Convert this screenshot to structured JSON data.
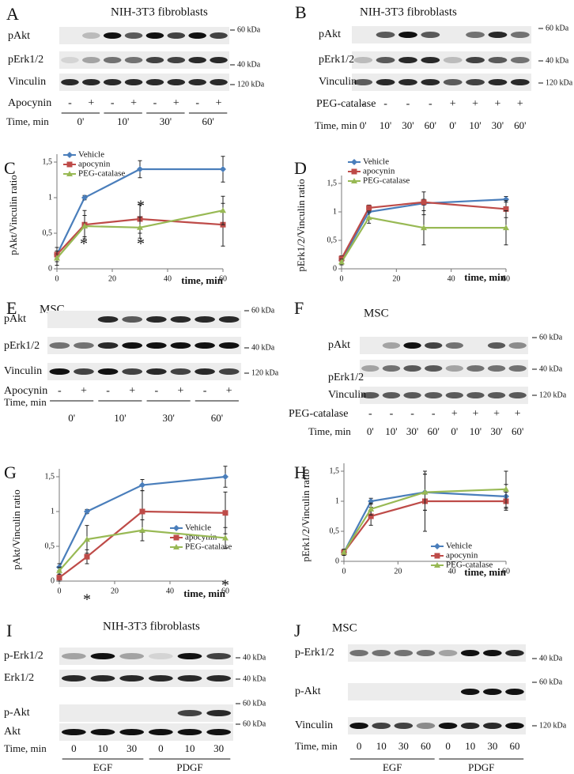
{
  "blots": [
    {
      "letter": "A",
      "title": "NIH-3T3 fibroblasts",
      "rows": [
        "pAkt",
        "pErk1/2",
        "Vinculin"
      ],
      "markers": [
        "60 kDa",
        "40 kDa",
        "120 kDa"
      ],
      "treatment": {
        "label": "Apocynin",
        "signs": [
          "-",
          "+",
          "-",
          "+",
          "-",
          "+",
          "-",
          "+"
        ]
      },
      "time": {
        "label": "Time, min",
        "values": [
          "0'",
          "10'",
          "30'",
          "60'"
        ]
      }
    },
    {
      "letter": "B",
      "title": "NIH-3T3 fibroblasts",
      "rows": [
        "pAkt",
        "pErk1/2",
        "Vinculin"
      ],
      "markers": [
        "60 kDa",
        "40 kDa",
        "120 kDa"
      ],
      "treatment": {
        "label": "PEG-catalase",
        "signs": [
          "-",
          "-",
          "-",
          "-",
          "+",
          "+",
          "+",
          "+"
        ]
      },
      "time": {
        "label": "Time, min",
        "values": [
          "0'",
          "10'",
          "30'",
          "60'",
          "0'",
          "10'",
          "30'",
          "60'"
        ]
      }
    },
    {
      "letter": "E",
      "title": "MSC",
      "rows": [
        "pAkt",
        "pErk1/2",
        "Vinculin"
      ],
      "markers": [
        "60 kDa",
        "40 kDa",
        "120 kDa"
      ],
      "treatment": {
        "label": "Apocynin",
        "signs": [
          "-",
          "+",
          "-",
          "+",
          "-",
          "+",
          "-",
          "+"
        ]
      },
      "time": {
        "label": "Time, min",
        "values": [
          "0'",
          "10'",
          "30'",
          "60'"
        ]
      }
    },
    {
      "letter": "F",
      "title": "MSC",
      "rows": [
        "pAkt",
        "pErk1/2",
        "Vinculin"
      ],
      "markers": [
        "60 kDa",
        "40 kDa",
        "120 kDa"
      ],
      "treatment": {
        "label": "PEG-catalase",
        "signs": [
          "-",
          "-",
          "-",
          "-",
          "+",
          "+",
          "+",
          "+"
        ]
      },
      "time": {
        "label": "Time, min",
        "values": [
          "0'",
          "10'",
          "30'",
          "60'",
          "0'",
          "10'",
          "30'",
          "60'"
        ]
      }
    },
    {
      "letter": "I",
      "title": "NIH-3T3 fibroblasts",
      "rows": [
        "p-Erk1/2",
        "Erk1/2",
        "p-Akt",
        "Akt"
      ],
      "markers": [
        "40 kDa",
        "40 kDa",
        "60 kDa",
        "60 kDa"
      ],
      "time": {
        "label": "Time, min",
        "values": [
          "0",
          "10",
          "30",
          "0",
          "10",
          "30"
        ]
      },
      "groups": [
        "EGF",
        "PDGF"
      ]
    },
    {
      "letter": "J",
      "title": "MSC",
      "rows": [
        "p-Erk1/2",
        "p-Akt",
        "Vinculin"
      ],
      "markers": [
        "40 kDa",
        "60 kDa",
        "120 kDa"
      ],
      "time": {
        "label": "Time, min",
        "values": [
          "0",
          "10",
          "30",
          "60",
          "0",
          "10",
          "30",
          "60"
        ]
      },
      "groups": [
        "EGF",
        "PDGF"
      ]
    }
  ],
  "chart_data": [
    {
      "letter": "C",
      "type": "line",
      "ylabel": "pAkt/Vinculin ratio",
      "xlabel": "time, min",
      "x": [
        0,
        10,
        30,
        60
      ],
      "xlim": [
        0,
        60
      ],
      "xticks": [
        0,
        20,
        40,
        60
      ],
      "ylim": [
        0,
        1.5
      ],
      "yticks": [
        0,
        {
          "value": 0.5,
          "label": "0,5"
        },
        1,
        {
          "value": 1.5,
          "label": "1,5"
        }
      ],
      "legend": "upper left",
      "series": [
        {
          "name": "Vehicle",
          "color": "#4a7ebb",
          "values": [
            0.2,
            1.0,
            1.4,
            1.4
          ],
          "errors": [
            0.05,
            0.03,
            0.12,
            0.18
          ]
        },
        {
          "name": "apocynin",
          "color": "#be4b48",
          "values": [
            0.2,
            0.62,
            0.7,
            0.62
          ],
          "errors": [
            0.1,
            0.2,
            0.2,
            0.3
          ]
        },
        {
          "name": "PEG-catalase",
          "color": "#98b954",
          "values": [
            0.15,
            0.6,
            0.58,
            0.82
          ],
          "errors": [
            0.1,
            0.15,
            0.15,
            0.2
          ]
        }
      ],
      "annotations": [
        "*",
        "*",
        "*"
      ]
    },
    {
      "letter": "D",
      "type": "line",
      "ylabel": "pErk1/2/Vinculin ratio",
      "xlabel": "time, min",
      "x": [
        0,
        10,
        30,
        60
      ],
      "xlim": [
        0,
        60
      ],
      "xticks": [
        0,
        20,
        40,
        60
      ],
      "ylim": [
        0,
        1.5
      ],
      "yticks": [
        0,
        {
          "value": 0.5,
          "label": "0,5"
        },
        1,
        {
          "value": 1.5,
          "label": "1,5"
        }
      ],
      "legend": "upper left",
      "series": [
        {
          "name": "Vehicle",
          "color": "#4a7ebb",
          "values": [
            0.15,
            1.0,
            1.15,
            1.22
          ],
          "errors": [
            0.05,
            0.1,
            0.2,
            0.05
          ]
        },
        {
          "name": "apocynin",
          "color": "#be4b48",
          "values": [
            0.18,
            1.07,
            1.17,
            1.05
          ],
          "errors": [
            0.05,
            0.05,
            0.05,
            0.15
          ]
        },
        {
          "name": "PEG-catalase",
          "color": "#98b954",
          "values": [
            0.12,
            0.9,
            0.72,
            0.72
          ],
          "errors": [
            0.05,
            0.1,
            0.3,
            0.3
          ]
        }
      ]
    },
    {
      "letter": "G",
      "type": "line",
      "ylabel": "pAkt/Vinculin ratio",
      "xlabel": "time, min",
      "x": [
        0,
        10,
        30,
        60
      ],
      "xlim": [
        0,
        60
      ],
      "xticks": [
        0,
        20,
        40,
        60
      ],
      "ylim": [
        0,
        1.5
      ],
      "yticks": [
        0,
        {
          "value": 0.5,
          "label": "0,5"
        },
        1,
        {
          "value": 1.5,
          "label": "1,5"
        }
      ],
      "legend": "lower right",
      "series": [
        {
          "name": "Vehicle",
          "color": "#4a7ebb",
          "values": [
            0.2,
            1.0,
            1.38,
            1.5
          ],
          "errors": [
            0.05,
            0.03,
            0.08,
            0.15
          ]
        },
        {
          "name": "apocynin",
          "color": "#be4b48",
          "values": [
            0.05,
            0.35,
            1.0,
            0.98
          ],
          "errors": [
            0.05,
            0.1,
            0.3,
            0.3
          ]
        },
        {
          "name": "PEG-catalase",
          "color": "#98b954",
          "values": [
            0.15,
            0.6,
            0.73,
            0.62
          ],
          "errors": [
            0.05,
            0.2,
            0.15,
            0.15
          ]
        }
      ],
      "annotations": [
        "*",
        "*"
      ]
    },
    {
      "letter": "H",
      "type": "line",
      "ylabel": "pErk1/2/Vinculin ratio",
      "xlabel": "time, min",
      "x": [
        0,
        10,
        30,
        60
      ],
      "xlim": [
        0,
        60
      ],
      "xticks": [
        0,
        20,
        40,
        60
      ],
      "ylim": [
        0,
        1.5
      ],
      "yticks": [
        0,
        {
          "value": 0.5,
          "label": "0,5"
        },
        1,
        {
          "value": 1.5,
          "label": "1,5"
        }
      ],
      "legend": "lower right",
      "series": [
        {
          "name": "Vehicle",
          "color": "#4a7ebb",
          "values": [
            0.15,
            1.0,
            1.15,
            1.08
          ],
          "errors": [
            0.05,
            0.05,
            0.3,
            0.2
          ]
        },
        {
          "name": "apocynin",
          "color": "#be4b48",
          "values": [
            0.15,
            0.75,
            1.0,
            1.0
          ],
          "errors": [
            0.05,
            0.15,
            0.5,
            0.15
          ]
        },
        {
          "name": "PEG-catalase",
          "color": "#98b954",
          "values": [
            0.15,
            0.87,
            1.15,
            1.2
          ],
          "errors": [
            0.05,
            0.1,
            0.3,
            0.3
          ]
        }
      ]
    }
  ]
}
